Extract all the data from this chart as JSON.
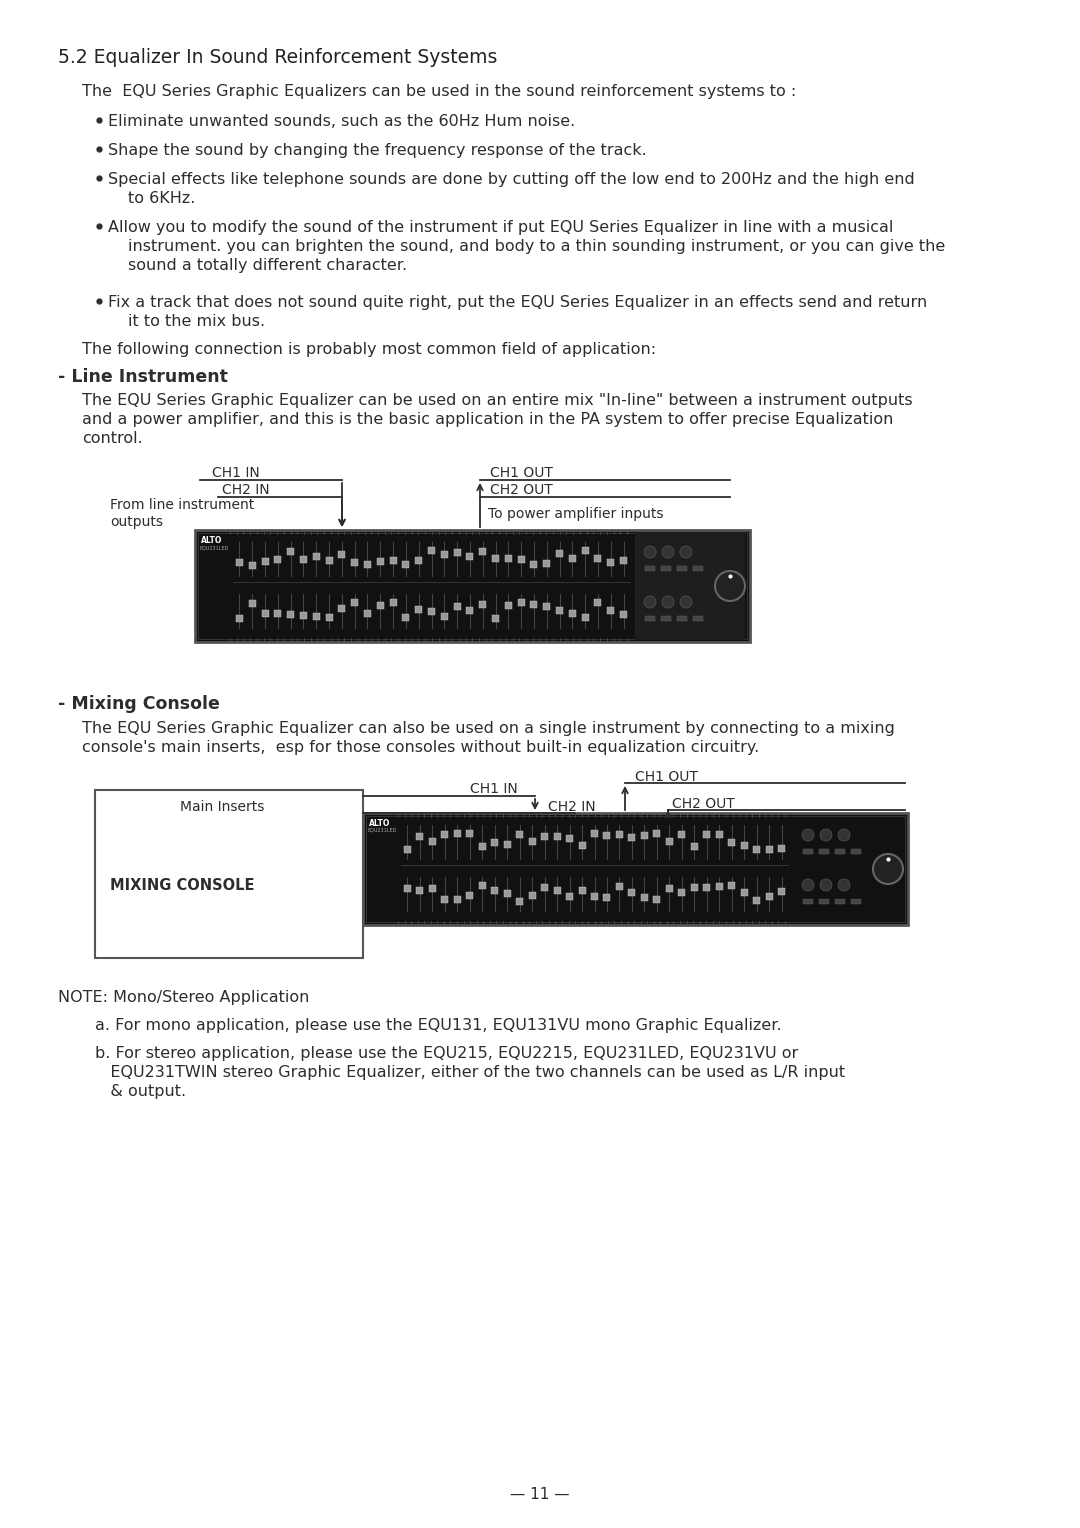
{
  "bg_color": "#ffffff",
  "text_color": "#2d2d2d",
  "section_title": "5.2 Equalizer In Sound Reinforcement Systems",
  "intro_text": "The  EQU Series Graphic Equalizers can be used in the sound reinforcement systems to :",
  "bullet1": "Eliminate unwanted sounds, such as the 60Hz Hum noise.",
  "bullet2": "Shape the sound by changing the frequency response of the track.",
  "bullet3a": "Special effects like telephone sounds are done by cutting off the low end to 200Hz and the high end",
  "bullet3b": "to 6KHz.",
  "bullet4a": "Allow you to modify the sound of the instrument if put EQU Series Equalizer in line with a musical",
  "bullet4b": "instrument. you can brighten the sound, and body to a thin sounding instrument, or you can give the",
  "bullet4c": "sound a totally different character.",
  "bullet5a": "Fix a track that does not sound quite right, put the EQU Series Equalizer in an effects send and return",
  "bullet5b": "it to the mix bus.",
  "following_text": "The following connection is probably most common field of application:",
  "line_instrument_header": "- Line Instrument",
  "li_text1": "The EQU Series Graphic Equalizer can be used on an entire mix \"In-line\" between a instrument outputs",
  "li_text2": "and a power amplifier, and this is the basic application in the PA system to offer precise Equalization",
  "li_text3": "control.",
  "mixing_console_header": "- Mixing Console",
  "mc_text1": "The EQU Series Graphic Equalizer can also be used on a single instrument by connecting to a mixing",
  "mc_text2": "console's main inserts,  esp for those consoles without built-in equalization circuitry.",
  "note_text": "NOTE: Mono/Stereo Application",
  "note_a": "a. For mono application, please use the EQU131, EQU131VU mono Graphic Equalizer.",
  "note_b1": "b. For stereo application, please use the EQU215, EQU2215, EQU231LED, EQU231VU or",
  "note_b2": "   EQU231TWIN stereo Graphic Equalizer, either of the two channels can be used as L/R input",
  "note_b3": "   & output.",
  "page_number": "— 11 —"
}
